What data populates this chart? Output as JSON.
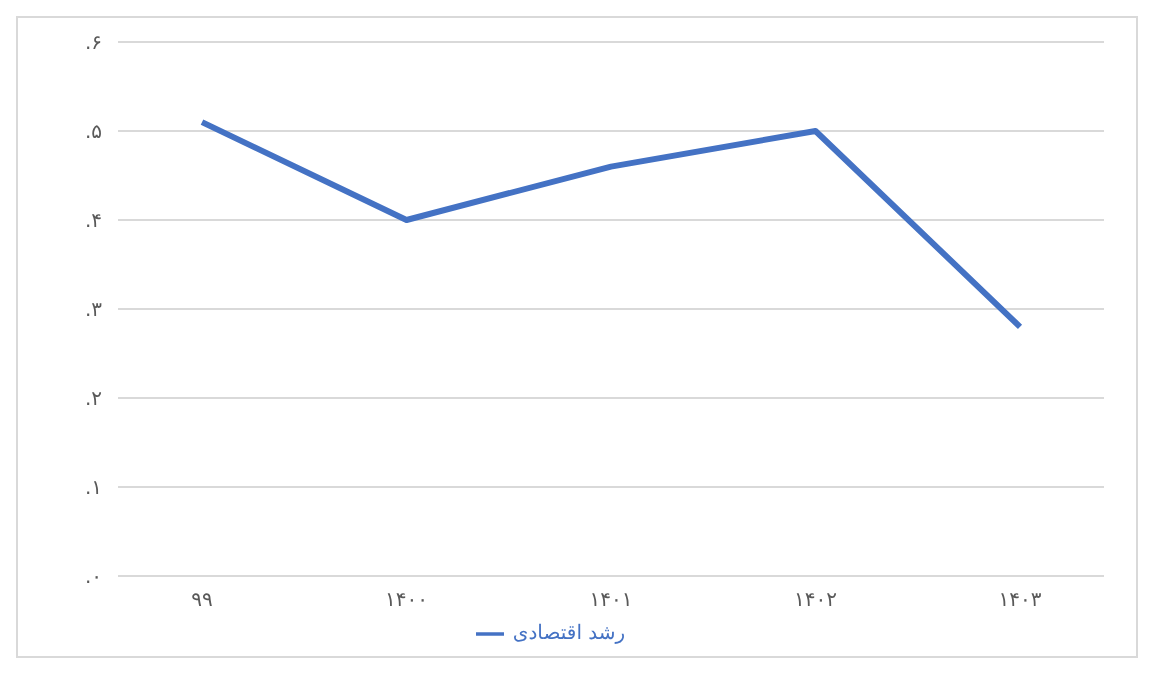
{
  "chart_data": {
    "type": "line",
    "categories": [
      "۹۹",
      "۱۴۰۰",
      "۱۴۰۱",
      "۱۴۰۲",
      "۱۴۰۳"
    ],
    "series": [
      {
        "name": "رشد اقتصادی",
        "color": "#4472c4",
        "values": [
          0.51,
          0.4,
          0.46,
          0.5,
          0.28
        ]
      }
    ],
    "ylim": [
      0,
      0.6
    ],
    "yticks": [
      {
        "value": 0,
        "label": ".۰"
      },
      {
        "value": 0.1,
        "label": ".۱"
      },
      {
        "value": 0.2,
        "label": ".۲"
      },
      {
        "value": 0.3,
        "label": ".۳"
      },
      {
        "value": 0.4,
        "label": ".۴"
      },
      {
        "value": 0.5,
        "label": ".۵"
      },
      {
        "value": 0.6,
        "label": ".۶"
      }
    ],
    "grid": "y",
    "legend": "bottom",
    "marker": "none",
    "line_style": "solid"
  }
}
